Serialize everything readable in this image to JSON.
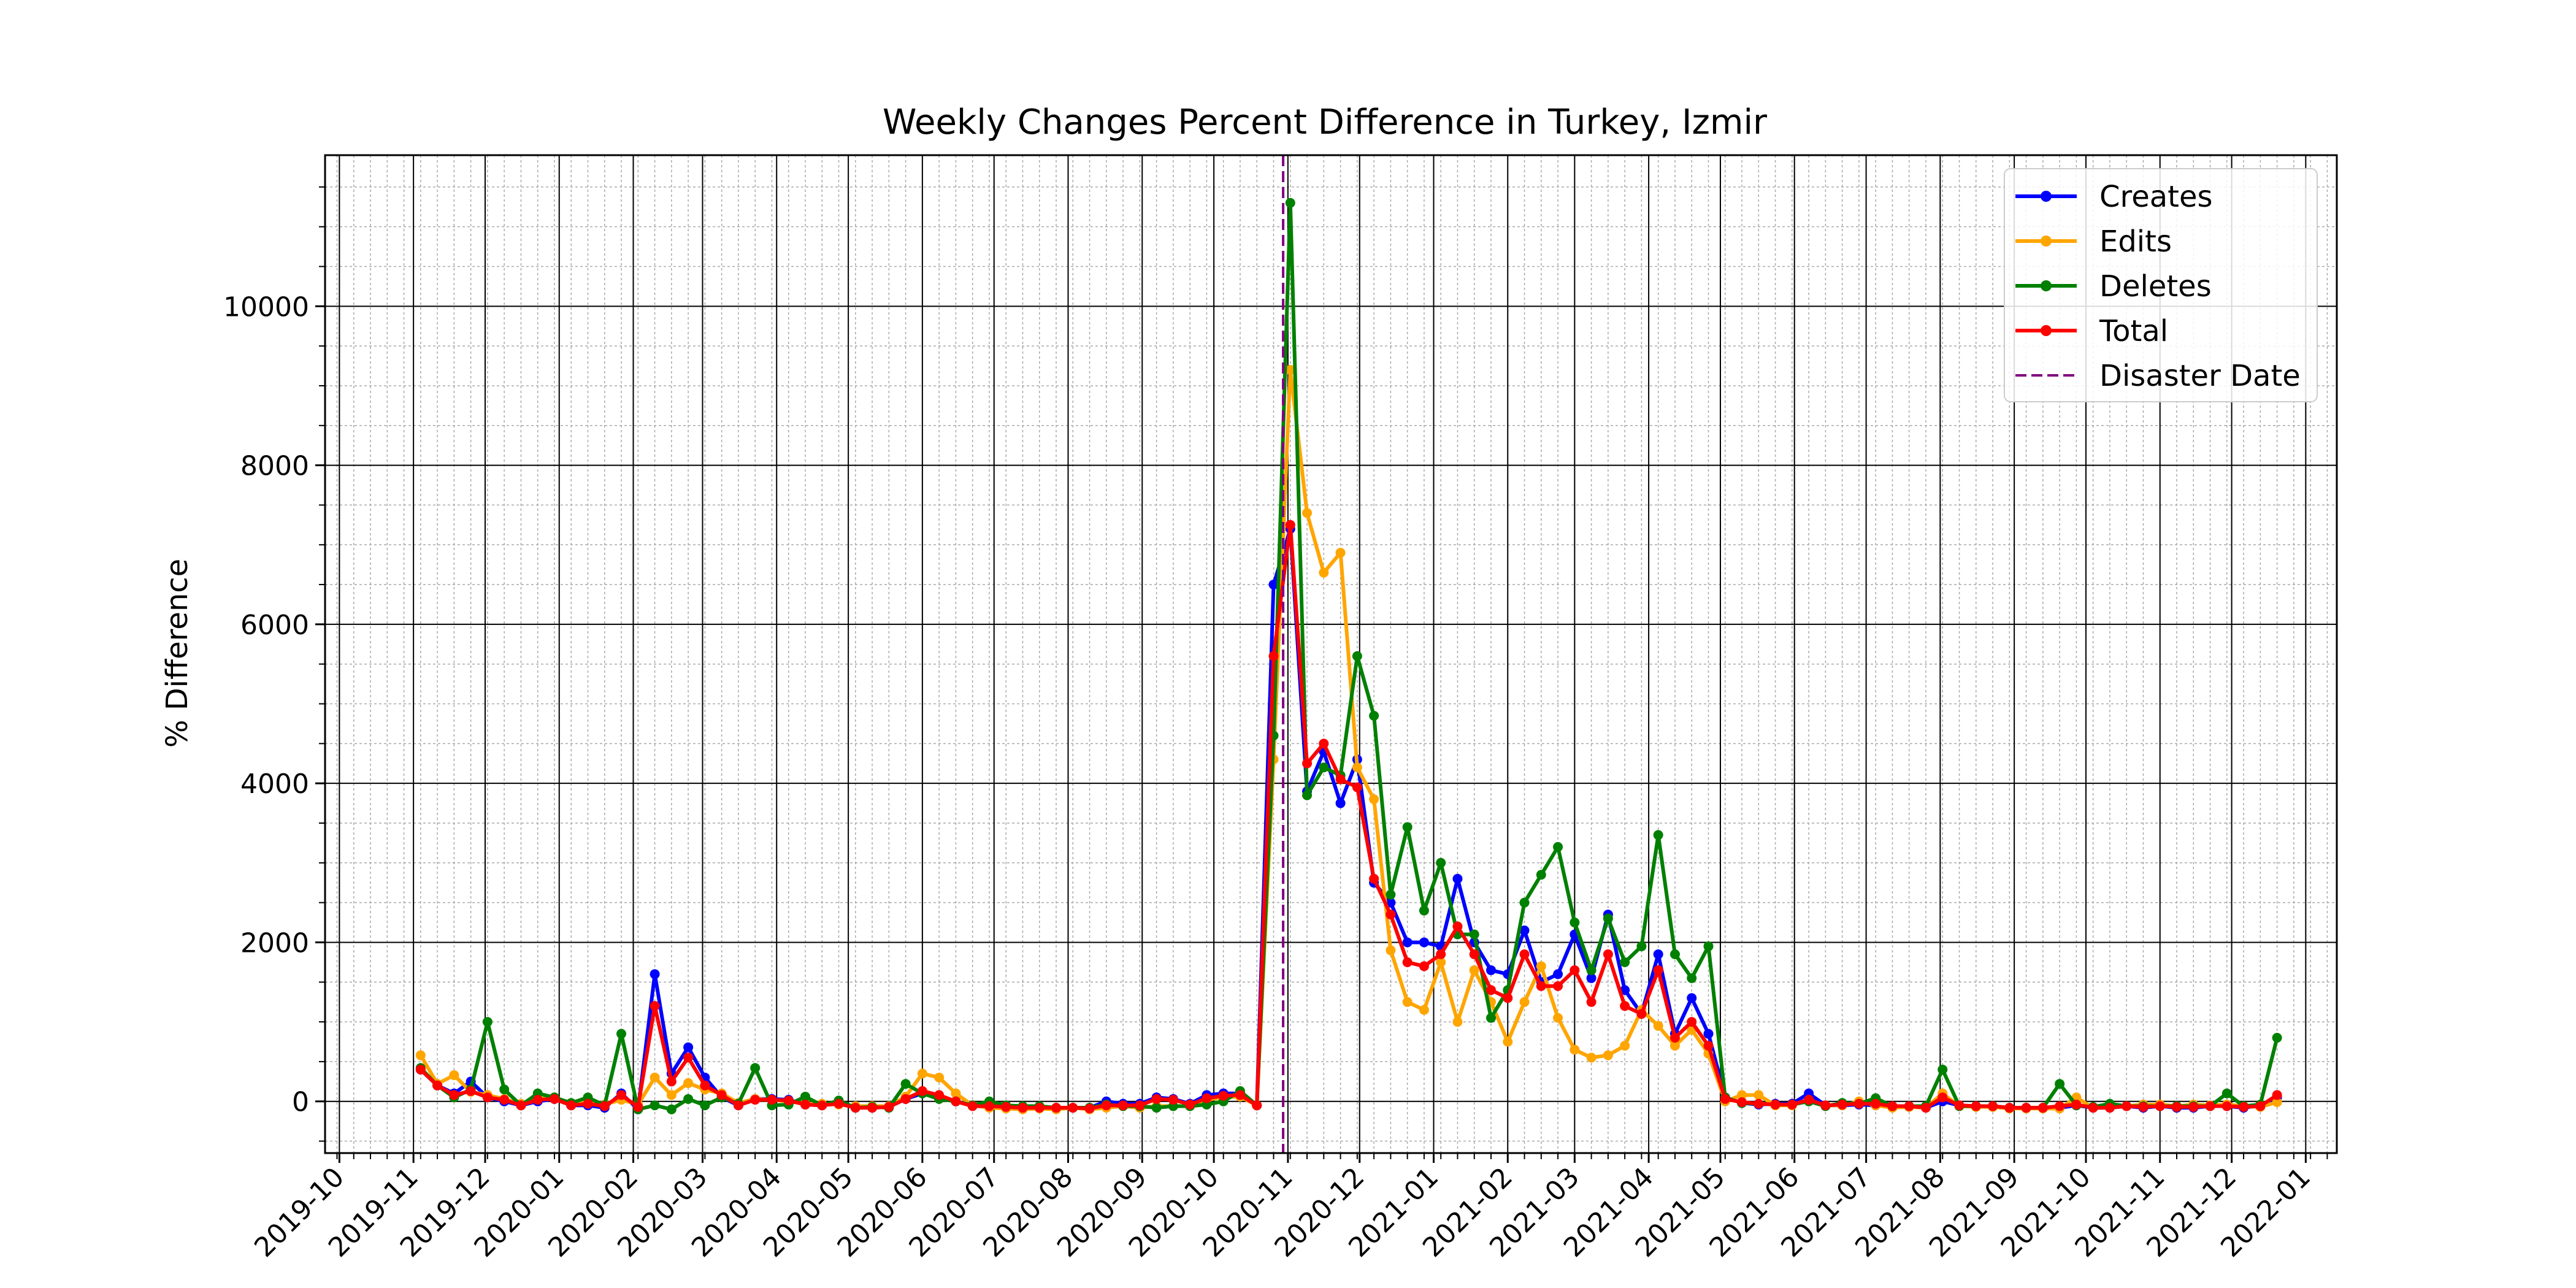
{
  "chart_data": {
    "type": "line",
    "title": "Weekly Changes Percent Difference in Turkey, Izmir",
    "xlabel": "",
    "ylabel": "% Difference",
    "xlim": [
      "2019-09-25",
      "2022-01-14"
    ],
    "ylim": [
      -650,
      11900
    ],
    "yticks": [
      0,
      2000,
      4000,
      6000,
      8000,
      10000
    ],
    "xticks": [
      "2019-10",
      "2019-11",
      "2019-12",
      "2020-01",
      "2020-02",
      "2020-03",
      "2020-04",
      "2020-05",
      "2020-06",
      "2020-07",
      "2020-08",
      "2020-09",
      "2020-10",
      "2020-11",
      "2020-12",
      "2021-01",
      "2021-02",
      "2021-03",
      "2021-04",
      "2021-05",
      "2021-06",
      "2021-07",
      "2021-08",
      "2021-09",
      "2021-10",
      "2021-11",
      "2021-12",
      "2022-01"
    ],
    "grid": true,
    "legend_position": "top-right",
    "disaster_date": "2020-10-30",
    "disaster_label": "Disaster Date",
    "x": [
      "2019-11-04",
      "2019-11-11",
      "2019-11-18",
      "2019-11-25",
      "2019-12-02",
      "2019-12-09",
      "2019-12-16",
      "2019-12-23",
      "2019-12-30",
      "2020-01-06",
      "2020-01-13",
      "2020-01-20",
      "2020-01-27",
      "2020-02-03",
      "2020-02-10",
      "2020-02-17",
      "2020-02-24",
      "2020-03-02",
      "2020-03-09",
      "2020-03-16",
      "2020-03-23",
      "2020-03-30",
      "2020-04-06",
      "2020-04-13",
      "2020-04-20",
      "2020-04-27",
      "2020-05-04",
      "2020-05-11",
      "2020-05-18",
      "2020-05-25",
      "2020-06-01",
      "2020-06-08",
      "2020-06-15",
      "2020-06-22",
      "2020-06-29",
      "2020-07-06",
      "2020-07-13",
      "2020-07-20",
      "2020-07-27",
      "2020-08-03",
      "2020-08-10",
      "2020-08-17",
      "2020-08-24",
      "2020-08-31",
      "2020-09-07",
      "2020-09-14",
      "2020-09-21",
      "2020-09-28",
      "2020-10-05",
      "2020-10-12",
      "2020-10-19",
      "2020-10-26",
      "2020-11-02",
      "2020-11-09",
      "2020-11-16",
      "2020-11-23",
      "2020-11-30",
      "2020-12-07",
      "2020-12-14",
      "2020-12-21",
      "2020-12-28",
      "2021-01-04",
      "2021-01-11",
      "2021-01-18",
      "2021-01-25",
      "2021-02-01",
      "2021-02-08",
      "2021-02-15",
      "2021-02-22",
      "2021-03-01",
      "2021-03-08",
      "2021-03-15",
      "2021-03-22",
      "2021-03-29",
      "2021-04-05",
      "2021-04-12",
      "2021-04-19",
      "2021-04-26",
      "2021-05-03",
      "2021-05-10",
      "2021-05-17",
      "2021-05-24",
      "2021-05-31",
      "2021-06-07",
      "2021-06-14",
      "2021-06-21",
      "2021-06-28",
      "2021-07-05",
      "2021-07-12",
      "2021-07-19",
      "2021-07-26",
      "2021-08-02",
      "2021-08-09",
      "2021-08-16",
      "2021-08-23",
      "2021-08-30",
      "2021-09-06",
      "2021-09-13",
      "2021-09-20",
      "2021-09-27",
      "2021-10-04",
      "2021-10-11",
      "2021-10-18",
      "2021-10-25",
      "2021-11-01",
      "2021-11-08",
      "2021-11-15",
      "2021-11-22",
      "2021-11-29",
      "2021-12-06",
      "2021-12-13",
      "2021-12-20"
    ],
    "series": [
      {
        "name": "Creates",
        "color": "#0000ff",
        "values": [
          400,
          200,
          100,
          250,
          50,
          0,
          -50,
          0,
          30,
          -50,
          -50,
          -80,
          100,
          -100,
          1600,
          350,
          680,
          300,
          50,
          -50,
          30,
          30,
          20,
          -40,
          -50,
          -20,
          -80,
          -80,
          -70,
          30,
          100,
          50,
          0,
          -50,
          -50,
          -60,
          -80,
          -80,
          -80,
          -80,
          -80,
          0,
          -30,
          -30,
          50,
          30,
          -30,
          80,
          100,
          100,
          -50,
          6500,
          7200,
          3900,
          4400,
          3750,
          4300,
          2750,
          2500,
          2000,
          2000,
          1950,
          2800,
          2000,
          1650,
          1600,
          2150,
          1500,
          1600,
          2100,
          1550,
          2350,
          1400,
          1100,
          1850,
          850,
          1300,
          850,
          50,
          -20,
          -40,
          -30,
          -30,
          100,
          -50,
          -50,
          -40,
          -50,
          -60,
          -60,
          -80,
          0,
          -50,
          -60,
          -60,
          -80,
          -80,
          -80,
          -80,
          -50,
          -80,
          -80,
          -60,
          -80,
          -60,
          -80,
          -80,
          -60,
          -60,
          -80,
          -50,
          50
        ]
      },
      {
        "name": "Edits",
        "color": "#ffa500",
        "values": [
          580,
          220,
          330,
          120,
          80,
          30,
          -30,
          30,
          50,
          -30,
          0,
          -40,
          20,
          -40,
          300,
          80,
          230,
          150,
          100,
          -20,
          30,
          20,
          0,
          -30,
          -30,
          -40,
          -60,
          -60,
          -60,
          60,
          350,
          300,
          100,
          -50,
          -80,
          -90,
          -100,
          -90,
          -100,
          -80,
          -100,
          -80,
          -60,
          -80,
          -60,
          -60,
          -60,
          20,
          50,
          60,
          -50,
          4300,
          9200,
          7400,
          6650,
          6900,
          4200,
          3800,
          1900,
          1250,
          1150,
          1750,
          1000,
          1650,
          1250,
          750,
          1250,
          1700,
          1050,
          650,
          550,
          580,
          700,
          1150,
          950,
          700,
          900,
          600,
          0,
          80,
          80,
          -50,
          -50,
          20,
          -50,
          -50,
          0,
          -50,
          -80,
          -70,
          -80,
          100,
          -60,
          -70,
          -70,
          -90,
          -90,
          -90,
          -90,
          50,
          -80,
          -70,
          -60,
          -40,
          -40,
          -60,
          -40,
          -50,
          -40,
          -60,
          -70,
          -10
        ]
      },
      {
        "name": "Deletes",
        "color": "#008000",
        "values": [
          420,
          200,
          50,
          150,
          1000,
          150,
          -50,
          100,
          50,
          -20,
          50,
          -50,
          850,
          -100,
          -50,
          -100,
          30,
          -50,
          50,
          -30,
          420,
          -50,
          -40,
          60,
          -50,
          10,
          -80,
          -70,
          -80,
          220,
          100,
          30,
          0,
          -50,
          0,
          -50,
          -60,
          -60,
          -80,
          -80,
          -80,
          -40,
          -60,
          -60,
          -80,
          -60,
          -60,
          -40,
          0,
          130,
          -50,
          4600,
          11300,
          3850,
          4200,
          4100,
          5600,
          4850,
          2600,
          3450,
          2400,
          3000,
          2100,
          2100,
          1050,
          1400,
          2500,
          2850,
          3200,
          2250,
          1650,
          2300,
          1750,
          1950,
          3350,
          1850,
          1550,
          1950,
          50,
          -20,
          -30,
          -40,
          -40,
          0,
          -60,
          -20,
          -30,
          40,
          -60,
          -60,
          -60,
          400,
          -60,
          -60,
          -60,
          -80,
          -80,
          -80,
          220,
          -50,
          -70,
          -30,
          -60,
          -60,
          -60,
          -60,
          -60,
          -60,
          100,
          -60,
          -40,
          800
        ]
      },
      {
        "name": "Total",
        "color": "#ff0000",
        "values": [
          400,
          200,
          80,
          130,
          50,
          20,
          -50,
          20,
          30,
          -50,
          -30,
          -60,
          80,
          -70,
          1200,
          250,
          550,
          200,
          80,
          -50,
          20,
          20,
          10,
          -40,
          -50,
          -30,
          -80,
          -80,
          -70,
          30,
          130,
          80,
          0,
          -60,
          -60,
          -70,
          -80,
          -80,
          -80,
          -80,
          -90,
          -50,
          -50,
          -50,
          30,
          20,
          -40,
          40,
          70,
          80,
          -50,
          5600,
          7250,
          4250,
          4500,
          4050,
          3950,
          2800,
          2350,
          1750,
          1700,
          1850,
          2200,
          1850,
          1400,
          1300,
          1850,
          1450,
          1450,
          1650,
          1250,
          1850,
          1200,
          1100,
          1650,
          800,
          1000,
          700,
          30,
          -10,
          -30,
          -40,
          -40,
          20,
          -50,
          -40,
          -30,
          -30,
          -60,
          -60,
          -80,
          50,
          -50,
          -60,
          -60,
          -80,
          -80,
          -80,
          -60,
          -40,
          -80,
          -80,
          -60,
          -70,
          -60,
          -70,
          -70,
          -60,
          -60,
          -70,
          -60,
          80
        ]
      }
    ]
  }
}
